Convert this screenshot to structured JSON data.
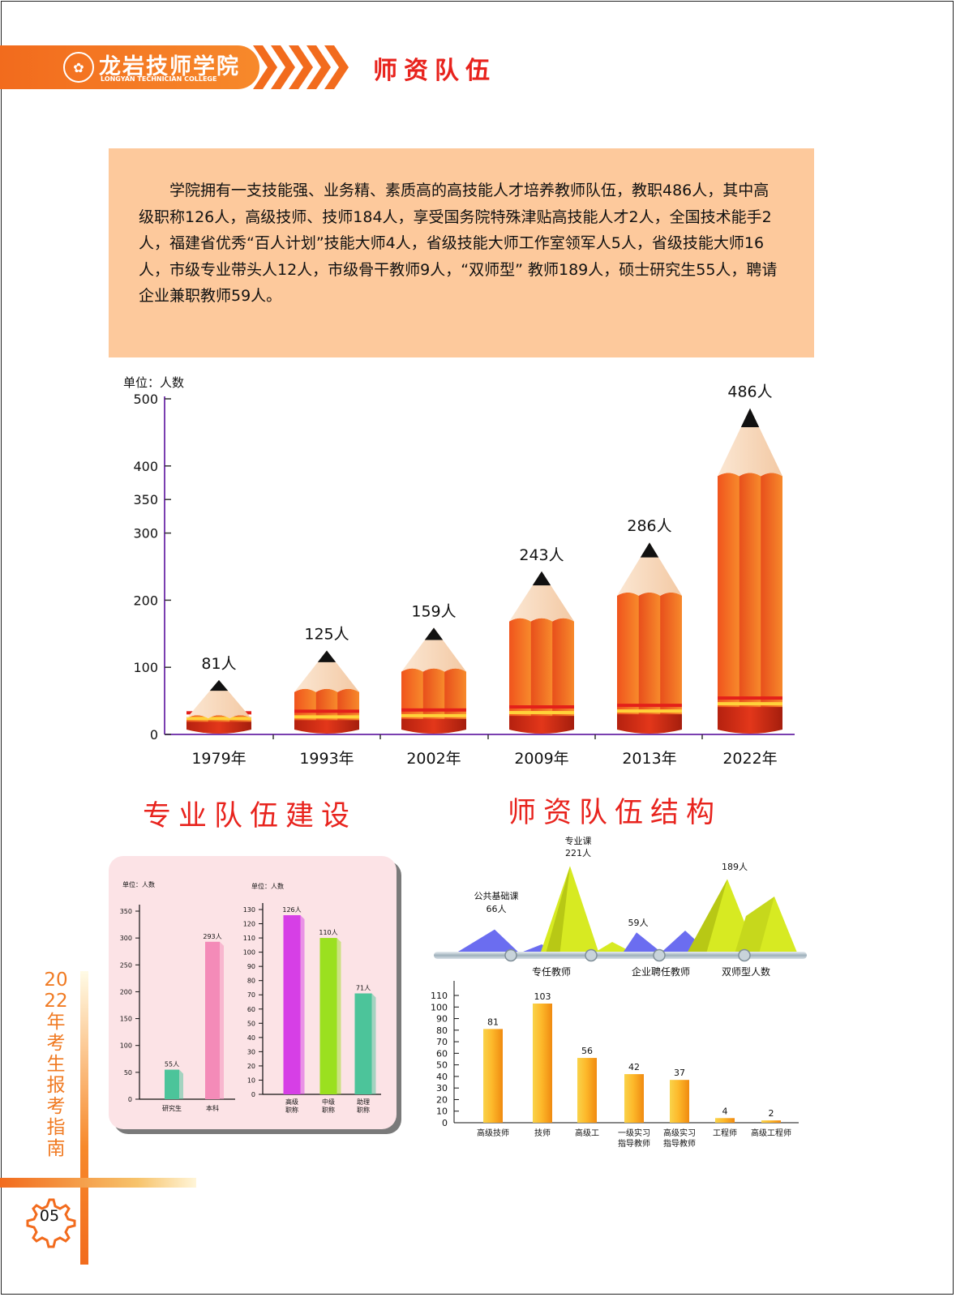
{
  "header": {
    "school_name": "龙岩技师学院",
    "school_name_en": "LONGYAN TECHNICIAN COLLEGE",
    "title": "师资队伍"
  },
  "intro": {
    "text": "学院拥有一支技能强、业务精、素质高的高技能人才培养教师队伍，教职486人，其中高级职称126人，高级技师、技师184人，享受国务院特殊津贴高技能人才2人，全国技术能手2人，福建省优秀“百人计划”技能大师4人，省级技能大师工作室领军人5人，省级技能大师16人，市级专业带头人12人，市级骨干教师9人，“双师型” 教师189人，硕士研究生55人，聘请企业兼职教师59人。"
  },
  "sections": {
    "team_building": "专业队伍建设",
    "faculty_structure": "师资队伍结构"
  },
  "side": {
    "vertical_text": "2022年考生报考指南",
    "page_number": "05"
  },
  "colors": {
    "brand_orange": "#f26b1d",
    "title_red": "#e8231d",
    "pencil_body": "#f7892b",
    "pencil_dark": "#e8501c",
    "intro_bg": "#fdc99c"
  },
  "chart_data": [
    {
      "type": "bar",
      "style": "pencil",
      "unit_label": "单位：人数",
      "categories": [
        "1979年",
        "1993年",
        "2002年",
        "2009年",
        "2013年",
        "2022年"
      ],
      "values": [
        81,
        125,
        159,
        243,
        286,
        486
      ],
      "data_labels": [
        "81人",
        "125人",
        "159人",
        "243人",
        "286人",
        "486人"
      ],
      "y_ticks": [
        0,
        100,
        200,
        300,
        350,
        400,
        500
      ],
      "ylim": [
        0,
        500
      ]
    },
    {
      "type": "bar",
      "unit_label": "单位：人数",
      "categories": [
        "研究生",
        "本科"
      ],
      "values": [
        55,
        293
      ],
      "data_labels": [
        "55人",
        "293人"
      ],
      "colors": [
        "#4cc49a",
        "#f48bb8"
      ],
      "y_ticks": [
        0,
        50,
        100,
        150,
        200,
        250,
        300,
        350
      ],
      "ylim": [
        0,
        350
      ]
    },
    {
      "type": "bar",
      "unit_label": "单位：人数",
      "categories": [
        "高级职称",
        "中级职称",
        "助理职称"
      ],
      "values": [
        126,
        110,
        71
      ],
      "data_labels": [
        "126人",
        "110人",
        "71人"
      ],
      "colors": [
        "#d63fe6",
        "#9be01f",
        "#4cc49a"
      ],
      "y_ticks": [
        0,
        10,
        20,
        30,
        40,
        50,
        60,
        70,
        80,
        90,
        100,
        110,
        120,
        130
      ],
      "ylim": [
        0,
        130
      ]
    },
    {
      "type": "area",
      "style": "mountain",
      "categories": [
        "公共基础课",
        "专业课",
        "专任教师",
        "企业聘任教师",
        "双师型人数"
      ],
      "peaks": [
        {
          "label": "公共基础课",
          "value": 66,
          "value_label": "66人",
          "color": "#6b6df0"
        },
        {
          "label": "专业课",
          "value": 221,
          "value_label": "221人",
          "color": "#d7ea22"
        },
        {
          "label": "",
          "value": 59,
          "value_label": "59人",
          "color": "#6b6df0"
        },
        {
          "label": "",
          "value": 189,
          "value_label": "189人",
          "color": "#d7ea22"
        }
      ],
      "axis_labels": [
        "专任教师",
        "企业聘任教师",
        "双师型人数"
      ]
    },
    {
      "type": "bar",
      "categories": [
        "高级技师",
        "技师",
        "高级工",
        "一级实习指导教师",
        "高级实习指导教师",
        "工程师",
        "高级工程师"
      ],
      "category_lines": [
        [
          "高级技师"
        ],
        [
          "技师"
        ],
        [
          "高级工"
        ],
        [
          "一级实习",
          "指导教师"
        ],
        [
          "高级实习",
          "指导教师"
        ],
        [
          "工程师"
        ],
        [
          "高级工程师"
        ]
      ],
      "values": [
        81,
        103,
        56,
        42,
        37,
        4,
        2
      ],
      "y_ticks": [
        0,
        10,
        20,
        30,
        40,
        50,
        60,
        70,
        80,
        90,
        100,
        110
      ],
      "ylim": [
        0,
        110
      ]
    }
  ]
}
